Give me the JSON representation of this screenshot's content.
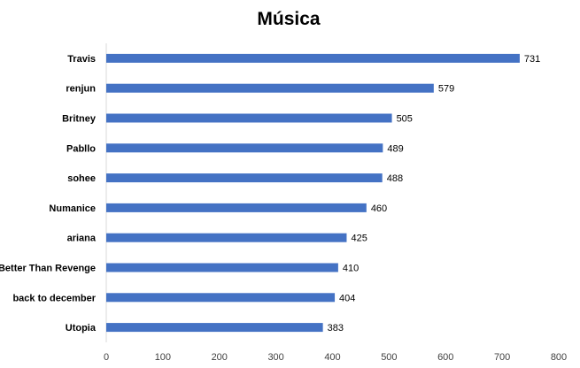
{
  "chart_data": {
    "type": "bar",
    "orientation": "horizontal",
    "title": "Música",
    "xlabel": "",
    "ylabel": "",
    "categories": [
      "Travis",
      "renjun",
      "Britney",
      "Pabllo",
      "sohee",
      "Numanice",
      "ariana",
      "Better Than Revenge",
      "back to december",
      "Utopia"
    ],
    "values": [
      731,
      579,
      505,
      489,
      488,
      460,
      425,
      410,
      404,
      383
    ],
    "xlim": [
      0,
      800
    ],
    "xticks": [
      "0",
      "100",
      "200",
      "300",
      "400",
      "500",
      "600",
      "700",
      "800"
    ],
    "data_labels": [
      "731",
      "579",
      "505",
      "489",
      "488",
      "460",
      "425",
      "410",
      "404",
      "383"
    ],
    "bar_color": "#4472C4",
    "grid": false,
    "legend": "none"
  }
}
